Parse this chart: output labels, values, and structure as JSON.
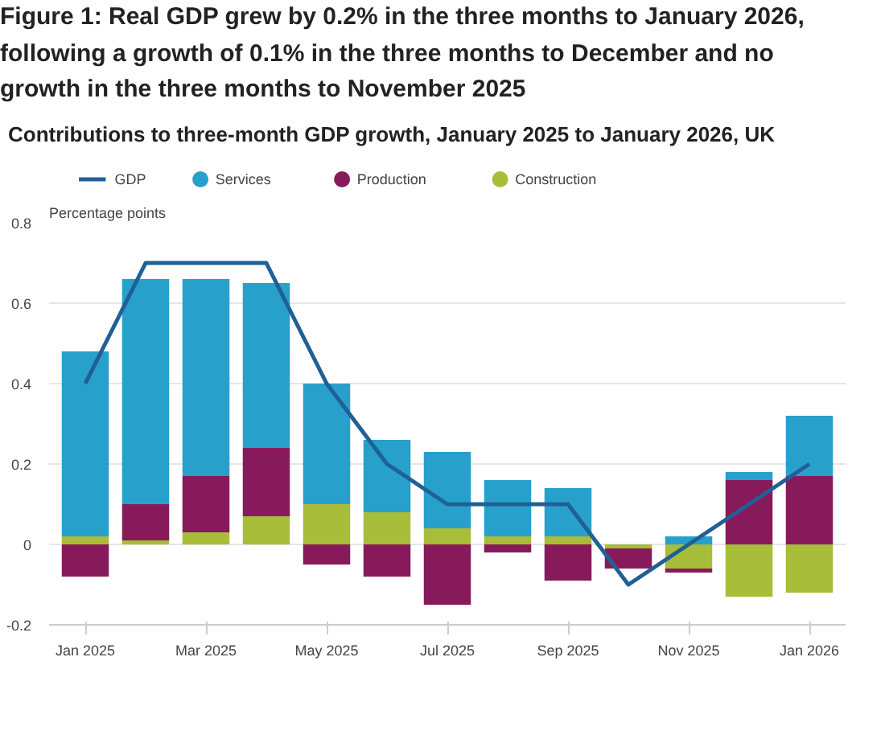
{
  "chart_data": {
    "type": "bar",
    "stacked": true,
    "title": "Figure 1: Real GDP grew by 0.2% in the three months to January 2026, following a growth of 0.1% in the three months to December and no growth in the three months to November 2025",
    "subtitle": "Contributions to three-month GDP growth, January 2025 to January 2026, UK",
    "ylabel": "Percentage points",
    "categories": [
      "Jan 2025",
      null,
      "Mar 2025",
      null,
      "May 2025",
      null,
      "Jul 2025",
      null,
      "Sep 2025",
      null,
      "Nov 2025",
      null,
      "Jan 2026"
    ],
    "series": [
      {
        "name": "Construction",
        "color": "#a8bd3a",
        "values": [
          0.02,
          0.01,
          0.03,
          0.07,
          0.1,
          0.08,
          0.04,
          0.02,
          0.02,
          -0.01,
          -0.06,
          -0.13,
          -0.12
        ]
      },
      {
        "name": "Production",
        "color": "#871a5b",
        "values": [
          -0.08,
          0.09,
          0.14,
          0.17,
          -0.05,
          -0.08,
          -0.15,
          -0.02,
          -0.09,
          -0.05,
          -0.01,
          0.16,
          0.17
        ]
      },
      {
        "name": "Services",
        "color": "#27a0cc",
        "values": [
          0.46,
          0.56,
          0.49,
          0.41,
          0.3,
          0.18,
          0.19,
          0.14,
          0.12,
          0.0,
          0.02,
          0.02,
          0.15
        ]
      },
      {
        "name": "GDP",
        "type": "line",
        "color": "#206095",
        "values": [
          0.4,
          0.7,
          0.7,
          0.7,
          0.4,
          0.2,
          0.1,
          0.1,
          0.1,
          -0.1,
          0.0,
          0.1,
          0.2
        ]
      }
    ],
    "ylim": [
      -0.2,
      0.8
    ],
    "yticks": [
      -0.2,
      0,
      0.2,
      0.4,
      0.6,
      0.8
    ],
    "grid": "y",
    "legend": "top",
    "marker": "none",
    "line_style": "solid"
  }
}
